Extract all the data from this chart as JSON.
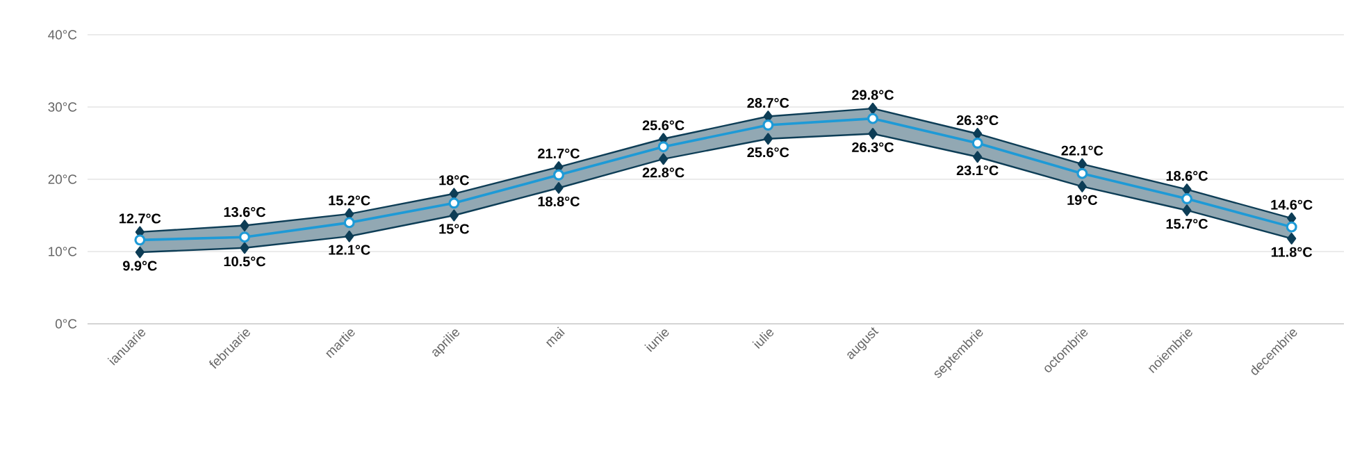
{
  "chart_data": {
    "type": "line",
    "categories": [
      "ianuarie",
      "februarie",
      "martie",
      "aprilie",
      "mai",
      "iunie",
      "iulie",
      "august",
      "septembrie",
      "octombrie",
      "noiembrie",
      "decembrie"
    ],
    "series": [
      {
        "color": "#0d3d56",
        "marker": "diamond",
        "values": [
          12.7,
          13.6,
          15.2,
          18,
          21.7,
          25.6,
          28.7,
          29.8,
          26.3,
          22.1,
          18.6,
          14.6
        ],
        "value_labels": [
          "12.7°C",
          "13.6°C",
          "15.2°C",
          "18°C",
          "21.7°C",
          "25.6°C",
          "28.7°C",
          "29.8°C",
          "26.3°C",
          "22.1°C",
          "18.6°C",
          "14.6°C"
        ]
      },
      {
        "color": "#0d3d56",
        "marker": "diamond",
        "values": [
          9.9,
          10.5,
          12.1,
          15,
          18.8,
          22.8,
          25.6,
          26.3,
          23.1,
          19,
          15.7,
          11.8
        ],
        "value_labels": [
          "9.9°C",
          "10.5°C",
          "12.1°C",
          "15°C",
          "18.8°C",
          "22.8°C",
          "25.6°C",
          "26.3°C",
          "23.1°C",
          "19°C",
          "15.7°C",
          "11.8°C"
        ]
      },
      {
        "color": "#1e9ad6",
        "marker": "circle",
        "values": [
          11.6,
          12.0,
          14.0,
          16.7,
          20.6,
          24.5,
          27.5,
          28.4,
          25.0,
          20.8,
          17.3,
          13.4
        ],
        "lower": [
          9.9,
          10.5,
          12.1,
          15,
          18.8,
          22.8,
          25.6,
          26.3,
          23.1,
          19,
          15.7,
          11.8
        ],
        "upper": [
          12.7,
          13.6,
          15.2,
          18,
          21.7,
          25.6,
          28.7,
          29.8,
          26.3,
          22.1,
          18.6,
          14.6
        ]
      }
    ],
    "ylim": [
      0,
      40
    ],
    "yticks": [
      {
        "value": 0,
        "label": "0°C"
      },
      {
        "value": 10,
        "label": "10°C"
      },
      {
        "value": 20,
        "label": "20°C"
      },
      {
        "value": 30,
        "label": "30°C"
      },
      {
        "value": 40,
        "label": "40°C"
      }
    ],
    "grid": "y",
    "line_style": "solid"
  }
}
